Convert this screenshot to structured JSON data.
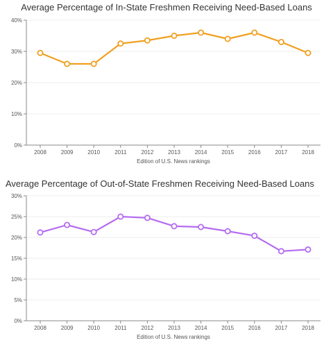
{
  "chart_data": [
    {
      "type": "line",
      "title": "Average Percentage of In-State Freshmen Receiving Need-Based Loans",
      "xlabel": "Edition of U.S. News rankings",
      "ylabel": "",
      "x": [
        "2008",
        "2009",
        "2010",
        "2011",
        "2012",
        "2013",
        "2014",
        "2015",
        "2016",
        "2017",
        "2018"
      ],
      "series": [
        {
          "values": [
            29.5,
            26,
            26,
            32.5,
            33.5,
            35,
            36,
            34,
            36,
            33,
            29.5
          ]
        }
      ],
      "ylim": [
        0,
        40
      ],
      "yticks": [
        0,
        10,
        20,
        30,
        40
      ],
      "ytick_labels": [
        "0%",
        "10%",
        "20%",
        "30%",
        "40%"
      ],
      "color": "#f0a020",
      "grid": true
    },
    {
      "type": "line",
      "title": "Average Percentage of Out-of-State Freshmen Receiving Need-Based Loans",
      "xlabel": "Edition of U.S. News rankings",
      "ylabel": "",
      "x": [
        "2008",
        "2009",
        "2010",
        "2011",
        "2012",
        "2013",
        "2014",
        "2015",
        "2016",
        "2017",
        "2018"
      ],
      "series": [
        {
          "values": [
            21.2,
            23,
            21.3,
            25,
            24.7,
            22.7,
            22.5,
            21.5,
            20.4,
            16.7,
            17.1
          ]
        }
      ],
      "ylim": [
        0,
        30
      ],
      "yticks": [
        0,
        5,
        10,
        15,
        20,
        25,
        30
      ],
      "ytick_labels": [
        "0%",
        "5%",
        "10%",
        "15%",
        "20%",
        "25%",
        "30%"
      ],
      "color": "#b56cf0",
      "grid": true
    }
  ]
}
